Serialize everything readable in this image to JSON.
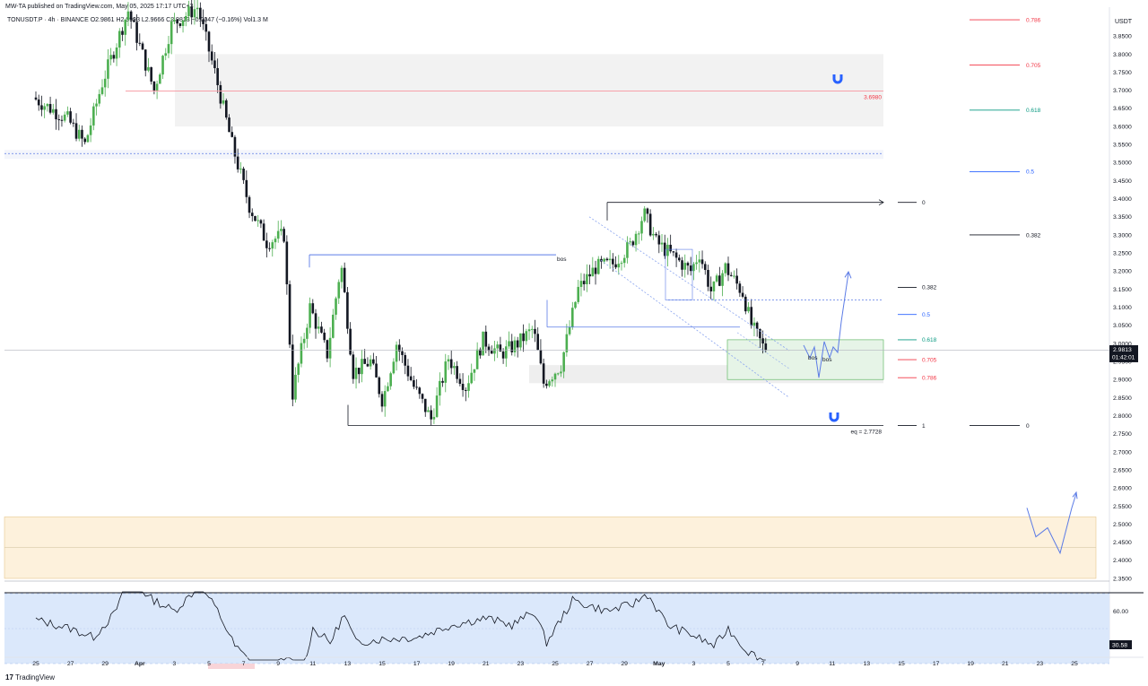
{
  "header": {
    "published": "MW-TA published on TradingView.com, May 05, 2025 17:17 UTC+3",
    "ohlc": "TONUSDT.P · 4h · BINANCE  O2.9861  H2.9993  L2.9666  C2.9813  −0.0047 (−0.16%)  Vol1.3 M"
  },
  "footer": {
    "logo_glyph": "17",
    "logo_text": "TradingView"
  },
  "colors": {
    "up": "#4caf50",
    "down": "#131722",
    "fib_red": "#f23645",
    "fib_green": "#089981",
    "fib_blue": "#2962ff",
    "rsi_line": "#131722",
    "rsi_band": "#dbe8fb",
    "demand_zone": "#fdf1dc",
    "green_zone": "#e6f4e7"
  },
  "chart_data": [
    {
      "type": "candlestick",
      "symbol": "TONUSDT.P",
      "interval": "4h",
      "exchange": "BINANCE",
      "currency": "USDT",
      "ylim": [
        2.33,
        3.9
      ],
      "y_ticks": [
        3.85,
        3.8,
        3.75,
        3.7,
        3.65,
        3.6,
        3.55,
        3.5,
        3.45,
        3.4,
        3.35,
        3.3,
        3.25,
        3.2,
        3.15,
        3.1,
        3.05,
        3.0,
        2.95,
        2.9,
        2.85,
        2.8,
        2.75,
        2.7,
        2.65,
        2.6,
        2.55,
        2.5,
        2.45,
        2.4,
        2.35
      ],
      "x_ticks": [
        "25",
        "27",
        "29",
        "Apr",
        "3",
        "5",
        "7",
        "9",
        "11",
        "13",
        "15",
        "17",
        "19",
        "21",
        "23",
        "25",
        "27",
        "29",
        "May",
        "3",
        "5",
        "7",
        "9",
        "11",
        "13",
        "15",
        "17",
        "19",
        "21",
        "23",
        "25"
      ],
      "last_price": "2.9813",
      "countdown": "01:42:01",
      "anchors": [
        {
          "d": 0,
          "p": 3.68
        },
        {
          "d": 2,
          "p": 3.62
        },
        {
          "d": 3,
          "p": 3.55
        },
        {
          "d": 4,
          "p": 3.72
        },
        {
          "d": 5.5,
          "p": 3.92
        },
        {
          "d": 7,
          "p": 3.7
        },
        {
          "d": 8,
          "p": 3.88
        },
        {
          "d": 9.5,
          "p": 3.93
        },
        {
          "d": 10.5,
          "p": 3.75
        },
        {
          "d": 11.5,
          "p": 3.55
        },
        {
          "d": 12.5,
          "p": 3.38
        },
        {
          "d": 13.5,
          "p": 3.28
        },
        {
          "d": 14.5,
          "p": 3.3
        },
        {
          "d": 15,
          "p": 2.86
        },
        {
          "d": 16,
          "p": 3.1
        },
        {
          "d": 17,
          "p": 2.97
        },
        {
          "d": 17.8,
          "p": 3.22
        },
        {
          "d": 18.5,
          "p": 2.92
        },
        {
          "d": 19.5,
          "p": 2.95
        },
        {
          "d": 20.2,
          "p": 2.84
        },
        {
          "d": 21,
          "p": 3.0
        },
        {
          "d": 22,
          "p": 2.88
        },
        {
          "d": 23,
          "p": 2.79
        },
        {
          "d": 24,
          "p": 2.96
        },
        {
          "d": 25,
          "p": 2.88
        },
        {
          "d": 26,
          "p": 3.01
        },
        {
          "d": 27,
          "p": 2.97
        },
        {
          "d": 28,
          "p": 3.0
        },
        {
          "d": 28.9,
          "p": 3.04
        },
        {
          "d": 29.5,
          "p": 2.89
        },
        {
          "d": 30.5,
          "p": 2.94
        },
        {
          "d": 31.5,
          "p": 3.15
        },
        {
          "d": 32.5,
          "p": 3.21
        },
        {
          "d": 33.5,
          "p": 3.22
        },
        {
          "d": 34.5,
          "p": 3.27
        },
        {
          "d": 35.3,
          "p": 3.36
        },
        {
          "d": 36,
          "p": 3.28
        },
        {
          "d": 37,
          "p": 3.24
        },
        {
          "d": 38,
          "p": 3.2
        },
        {
          "d": 38.5,
          "p": 3.25
        },
        {
          "d": 39.2,
          "p": 3.14
        },
        {
          "d": 40,
          "p": 3.21
        },
        {
          "d": 41,
          "p": 3.14
        },
        {
          "d": 41.5,
          "p": 3.05
        },
        {
          "d": 42.3,
          "p": 2.98
        }
      ],
      "reference_lines": [
        {
          "price": 3.698,
          "label": "3.6980",
          "color": "red"
        },
        {
          "price": 3.525,
          "label": "",
          "color": "blue-dashed"
        }
      ],
      "labels": [
        {
          "text": "bos"
        },
        {
          "text": "bos"
        },
        {
          "text": "bos"
        },
        {
          "text": "eq = 2.7728",
          "price": 2.7728
        }
      ],
      "fib_inner": [
        {
          "level": "0",
          "price": 3.39
        },
        {
          "level": "0.382",
          "price": 3.155
        },
        {
          "level": "0.5",
          "price": 3.08
        },
        {
          "level": "0.618",
          "price": 3.01
        },
        {
          "level": "0.705",
          "price": 2.955
        },
        {
          "level": "0.786",
          "price": 2.905
        },
        {
          "level": "1",
          "price": 2.7728
        }
      ],
      "fib_outer": [
        {
          "level": "0.786",
          "price": 3.895
        },
        {
          "level": "0.705",
          "price": 3.77
        },
        {
          "level": "0.618",
          "price": 3.645
        },
        {
          "level": "0.5",
          "price": 3.475
        },
        {
          "level": "0.382",
          "price": 3.3
        },
        {
          "level": "0",
          "price": 2.7728
        }
      ]
    },
    {
      "type": "line",
      "name": "RSI",
      "ylim": [
        28,
        82
      ],
      "y_ticks": [
        60.0,
        40.0
      ],
      "last_value": "30.58",
      "band": [
        30,
        70
      ],
      "anchors": [
        {
          "d": 0,
          "v": 55
        },
        {
          "d": 2,
          "v": 50
        },
        {
          "d": 3.3,
          "v": 45
        },
        {
          "d": 4.5,
          "v": 58
        },
        {
          "d": 5.5,
          "v": 80
        },
        {
          "d": 6.5,
          "v": 68
        },
        {
          "d": 8,
          "v": 60
        },
        {
          "d": 9.5,
          "v": 75
        },
        {
          "d": 10.5,
          "v": 60
        },
        {
          "d": 11.5,
          "v": 40
        },
        {
          "d": 12.5,
          "v": 30
        },
        {
          "d": 13.5,
          "v": 28
        },
        {
          "d": 14.5,
          "v": 32
        },
        {
          "d": 15.5,
          "v": 30
        },
        {
          "d": 16,
          "v": 50
        },
        {
          "d": 17,
          "v": 42
        },
        {
          "d": 17.8,
          "v": 58
        },
        {
          "d": 18.5,
          "v": 42
        },
        {
          "d": 20,
          "v": 44
        },
        {
          "d": 22,
          "v": 45
        },
        {
          "d": 24,
          "v": 52
        },
        {
          "d": 26,
          "v": 56
        },
        {
          "d": 27.5,
          "v": 52
        },
        {
          "d": 28.8,
          "v": 60
        },
        {
          "d": 29.5,
          "v": 42
        },
        {
          "d": 31,
          "v": 66
        },
        {
          "d": 33,
          "v": 60
        },
        {
          "d": 34.5,
          "v": 64
        },
        {
          "d": 35.3,
          "v": 70
        },
        {
          "d": 36.5,
          "v": 52
        },
        {
          "d": 38,
          "v": 46
        },
        {
          "d": 39.2,
          "v": 40
        },
        {
          "d": 40,
          "v": 50
        },
        {
          "d": 41,
          "v": 38
        },
        {
          "d": 42.3,
          "v": 30
        }
      ]
    }
  ]
}
